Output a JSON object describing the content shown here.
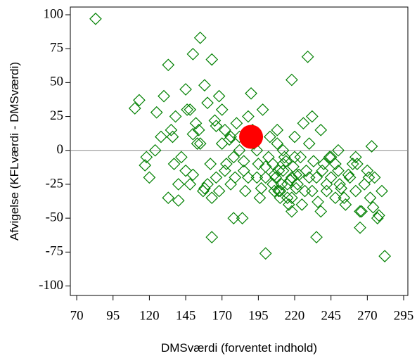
{
  "chart_data": {
    "type": "scatter",
    "xlabel": "DMSværdi (forventet indhold)",
    "ylabel": "Afvigelse (KFLværdi - DMSværdi)",
    "xlim": [
      65.6,
      297.9
    ],
    "ylim": [
      -107,
      105.7
    ],
    "xticks": [
      70,
      95,
      120,
      145,
      170,
      195,
      220,
      245,
      270,
      295
    ],
    "yticks": [
      -100,
      -75,
      -50,
      -25,
      0,
      25,
      50,
      75,
      100
    ],
    "hline": 0,
    "series": [
      {
        "color": "#008000",
        "marker": "diamond",
        "x": [
          83,
          155,
          150,
          163,
          229,
          133,
          218,
          113,
          110,
          200,
          282,
          235,
          163,
          178,
          184,
          265,
          273,
          250,
          140,
          133,
          117,
          120,
          125,
          130,
          128,
          135,
          138,
          142,
          145,
          148,
          150,
          152,
          155,
          158,
          160,
          162,
          165,
          168,
          170,
          172,
          175,
          178,
          180,
          182,
          185,
          188,
          190,
          192,
          195,
          198,
          200,
          202,
          205,
          208,
          210,
          212,
          215,
          218,
          220,
          222,
          225,
          228,
          230,
          232,
          235,
          238,
          240,
          242,
          245,
          248,
          250,
          252,
          255,
          258,
          260,
          262,
          265,
          268,
          270,
          272,
          275,
          278,
          280,
          170,
          173,
          176,
          179,
          182,
          185,
          188,
          191,
          194,
          197,
          200,
          203,
          206,
          209,
          212,
          215,
          218,
          221,
          224,
          227,
          230,
          233,
          236,
          239,
          242,
          245,
          248,
          251,
          254,
          257,
          160,
          163,
          166,
          145,
          148,
          153,
          157,
          137,
          124,
          118,
          205,
          207,
          209,
          211,
          213,
          217,
          219,
          221,
          223,
          210,
          212,
          214,
          208,
          206,
          216,
          220,
          218,
          196,
          194,
          186,
          176,
          172,
          168,
          166,
          158,
          154,
          150,
          146,
          140,
          136,
          226,
          232,
          238,
          244,
          262,
          266,
          274,
          277,
          271,
          263
        ],
        "values": [
          97,
          83,
          71,
          67,
          69,
          63,
          52,
          37,
          31,
          -76,
          -78,
          -64,
          -64,
          -50,
          -50,
          -57,
          3,
          0,
          -37,
          -35,
          -11,
          -20,
          28,
          40,
          10,
          15,
          25,
          -5,
          45,
          30,
          12,
          20,
          5,
          48,
          35,
          -10,
          22,
          40,
          30,
          15,
          8,
          -5,
          20,
          10,
          -15,
          25,
          42,
          5,
          -10,
          30,
          -20,
          -5,
          -25,
          15,
          -30,
          -10,
          -35,
          -20,
          10,
          -25,
          -40,
          -15,
          5,
          -30,
          -20,
          -45,
          -10,
          -25,
          -5,
          -35,
          -15,
          -28,
          -40,
          -20,
          -10,
          -30,
          -45,
          -25,
          -15,
          -35,
          -20,
          -48,
          -30,
          5,
          -10,
          10,
          -20,
          0,
          -8,
          -20,
          15,
          0,
          -28,
          -12,
          10,
          -18,
          -30,
          -15,
          -25,
          -35,
          -18,
          -5,
          -30,
          -20,
          -8,
          -38,
          -15,
          -30,
          -20,
          -10,
          -25,
          -35,
          -18,
          -25,
          -35,
          -20,
          -15,
          -25,
          5,
          -30,
          -10,
          0,
          -5,
          -10,
          -20,
          -15,
          -25,
          -5,
          -22,
          -12,
          -28,
          -18,
          -35,
          0,
          -8,
          5,
          -30,
          -40,
          -5,
          -45,
          -35,
          -20,
          -30,
          -25,
          -15,
          -30,
          18,
          -28,
          15,
          -18,
          30,
          -25,
          10,
          20,
          25,
          15,
          -5,
          -5,
          -45,
          -42,
          -50,
          -20,
          -10
        ]
      },
      {
        "color": "#ff0000",
        "marker": "circle",
        "x": [
          190
        ],
        "values": [
          10
        ]
      }
    ]
  }
}
